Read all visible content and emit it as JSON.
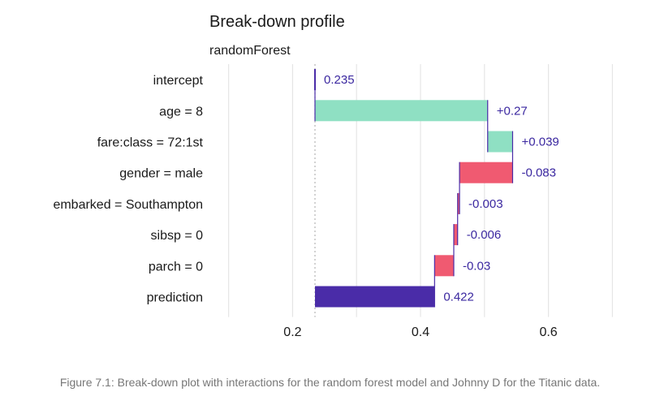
{
  "chart_data": {
    "type": "bar",
    "subtype": "waterfall",
    "title": "Break-down profile",
    "subtitle": "randomForest",
    "xlabel": "",
    "ylabel": "",
    "xlim": [
      0.07,
      0.73
    ],
    "xticks": [
      0.2,
      0.4,
      0.6
    ],
    "grid": true,
    "legend": "none",
    "baseline": 0.235,
    "categories": [
      "intercept",
      "age = 8",
      "fare:class = 72:1st",
      "gender = male",
      "embarked = Southampton",
      "sibsp = 0",
      "parch = 0",
      "prediction"
    ],
    "contributions": [
      0.235,
      0.27,
      0.039,
      -0.083,
      -0.003,
      -0.006,
      -0.03,
      0.422
    ],
    "data_labels": [
      "0.235",
      "+0.27",
      "+0.039",
      "-0.083",
      "-0.003",
      "-0.006",
      "-0.03",
      "0.422"
    ],
    "bar_kinds": [
      "intercept",
      "positive",
      "positive",
      "negative",
      "negative",
      "negative",
      "negative",
      "prediction"
    ]
  },
  "colors": {
    "positive": "#8fe0c3",
    "negative": "#f05a71",
    "prediction": "#4a2ca8",
    "connector": "#4a2ca8",
    "label_text": "#3b28a0",
    "grid": "#e5e5e5",
    "baseline_dotted": "#b5b5b5"
  },
  "caption": "Figure 7.1: Break-down plot with interactions for the random forest model and Johnny D for the Titanic data."
}
